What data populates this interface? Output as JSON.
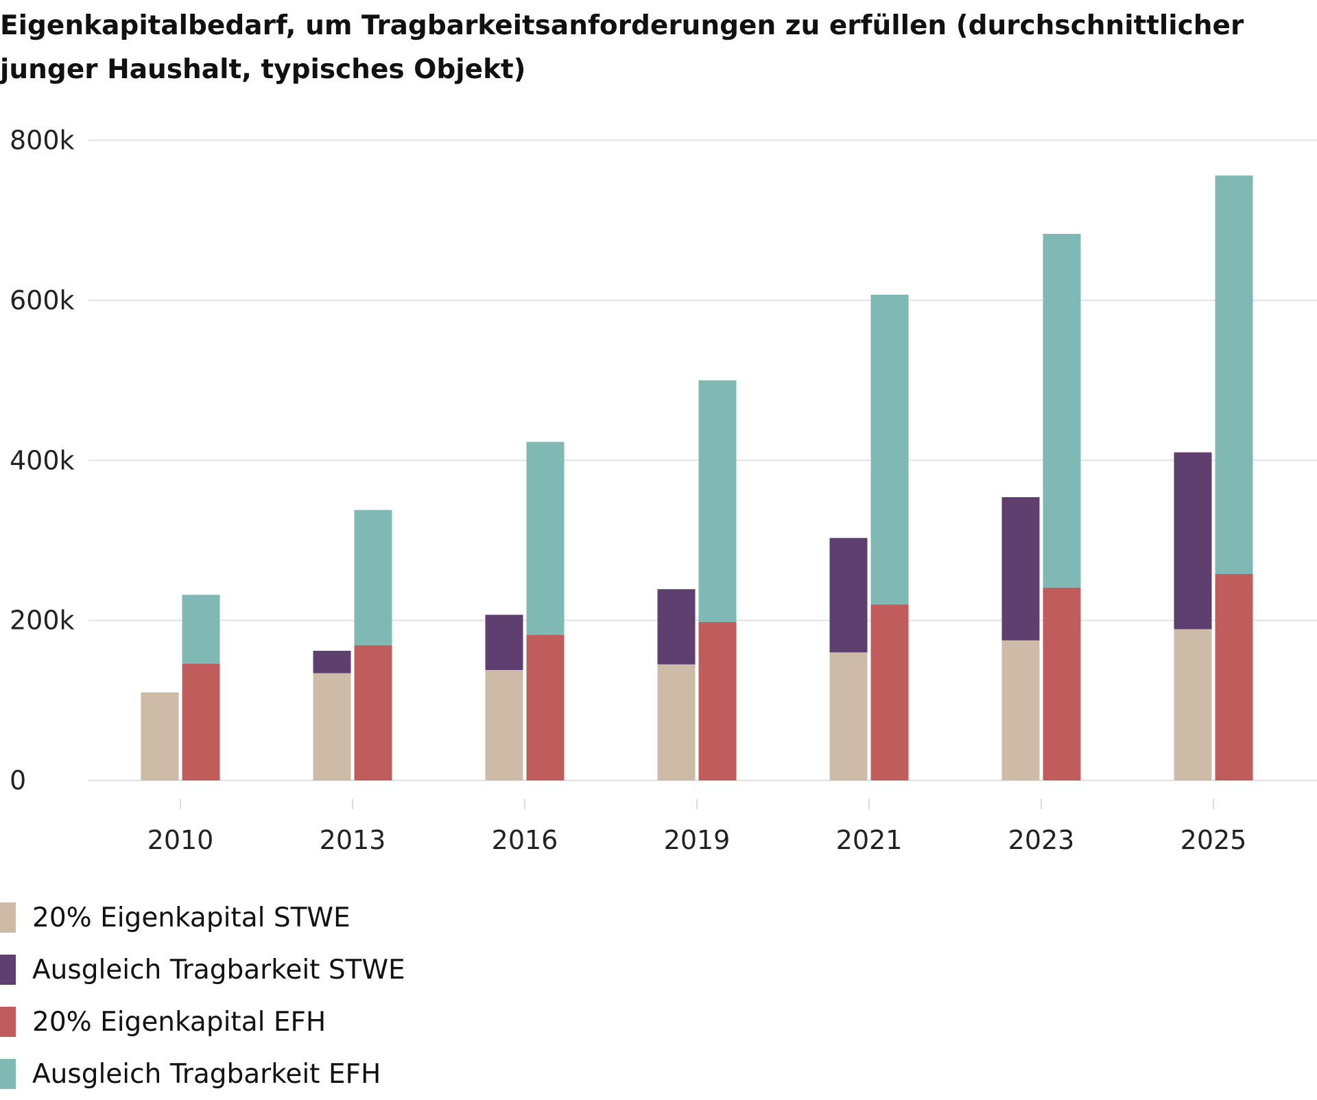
{
  "chart_data": {
    "type": "bar",
    "title": "Eigenkapitalbedarf, um Tragbarkeitsanforderungen zu erfüllen (durchschnittlicher junger Haushalt, typisches Objekt)",
    "xlabel": "",
    "ylabel": "",
    "ylim": [
      0,
      800000
    ],
    "yticks": [
      0,
      200000,
      400000,
      600000,
      800000
    ],
    "ytick_labels": [
      "0",
      "200k",
      "400k",
      "600k",
      "800k"
    ],
    "grid": true,
    "legend_position": "bottom-left",
    "categories": [
      "2010",
      "2013",
      "2016",
      "2019",
      "2021",
      "2023",
      "2025"
    ],
    "stacks": [
      "STWE",
      "EFH"
    ],
    "series": [
      {
        "name": "20% Eigenkapital STWE",
        "stack": "STWE",
        "color": "#cdbba8",
        "values": [
          110000,
          134000,
          138000,
          145000,
          160000,
          175000,
          189000
        ]
      },
      {
        "name": "Ausgleich Tragbarkeit STWE",
        "stack": "STWE",
        "color": "#5f3f70",
        "values": [
          0,
          28000,
          69000,
          94000,
          143000,
          179000,
          221000
        ]
      },
      {
        "name": "20% Eigenkapital EFH",
        "stack": "EFH",
        "color": "#c05c5c",
        "values": [
          146000,
          169000,
          182000,
          198000,
          220000,
          241000,
          258000
        ]
      },
      {
        "name": "Ausgleich Tragbarkeit EFH",
        "stack": "EFH",
        "color": "#80b8b3",
        "values": [
          86000,
          169000,
          241000,
          302000,
          387000,
          442000,
          498000
        ]
      }
    ]
  }
}
